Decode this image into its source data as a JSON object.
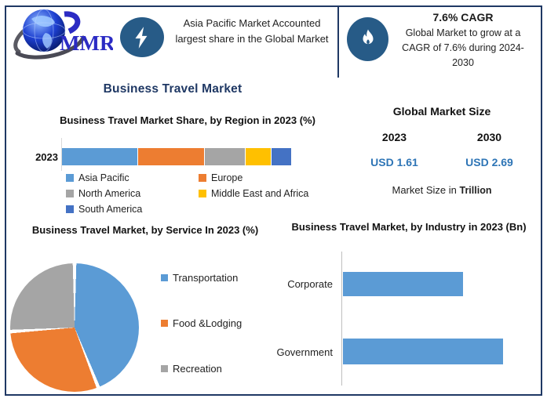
{
  "brand": {
    "logo_text": "MMR"
  },
  "header": {
    "highlight": "Asia Pacific Market Accounted largest share in the Global Market",
    "cagr": {
      "title": "7.6% CAGR",
      "description": "Global Market to grow at a CAGR of 7.6% during 2024-2030"
    }
  },
  "page_title": "Business Travel Market",
  "market_size": {
    "title": "Global Market Size",
    "entries": [
      {
        "year": "2023",
        "value": "USD 1.61"
      },
      {
        "year": "2030",
        "value": "USD 2.69"
      }
    ],
    "footnote": "Market Size in",
    "footnote_unit": "Trillion"
  },
  "colors": {
    "frame_navy": "#1F3864",
    "icon_circle_blue": "#275B87",
    "value_blue": "#2E75B6",
    "series_blue": "#5B9BD5",
    "series_orange": "#ED7D31",
    "series_gray": "#A5A5A5",
    "series_yellow": "#FFC000",
    "series_dark_blue": "#4472C4"
  },
  "chart_data": [
    {
      "id": "region_share",
      "type": "bar",
      "subtype": "stacked-horizontal",
      "title": "Business Travel Market Share, by Region in 2023 (%)",
      "category": "2023",
      "unit": "%",
      "legend_position": "bottom",
      "series": [
        {
          "name": "Asia Pacific",
          "value": 33,
          "color": "#5B9BD5"
        },
        {
          "name": "Europe",
          "value": 29,
          "color": "#ED7D31"
        },
        {
          "name": "North America",
          "value": 18,
          "color": "#A5A5A5"
        },
        {
          "name": "Middle East and Africa",
          "value": 11,
          "color": "#FFC000"
        },
        {
          "name": "South America",
          "value": 9,
          "color": "#4472C4"
        }
      ]
    },
    {
      "id": "service_share",
      "type": "pie",
      "title": "Business Travel Market, by Service In 2023 (%)",
      "unit": "%",
      "legend_position": "right",
      "start_angle_deg": 0,
      "series": [
        {
          "name": "Transportation",
          "value": 44,
          "color": "#5B9BD5"
        },
        {
          "name": "Food &Lodging",
          "value": 30,
          "color": "#ED7D31"
        },
        {
          "name": "Recreation",
          "value": 26,
          "color": "#A5A5A5"
        }
      ]
    },
    {
      "id": "industry_size",
      "type": "bar",
      "subtype": "horizontal",
      "title": "Business Travel Market, by Industry in 2023 (Bn)",
      "categories": [
        "Corporate",
        "Government"
      ],
      "values": [
        75,
        100
      ],
      "value_note": "numeric axis not labeled in source; values are relative bar lengths (Government = 100)",
      "color": "#5B9BD5",
      "grid": false
    }
  ]
}
